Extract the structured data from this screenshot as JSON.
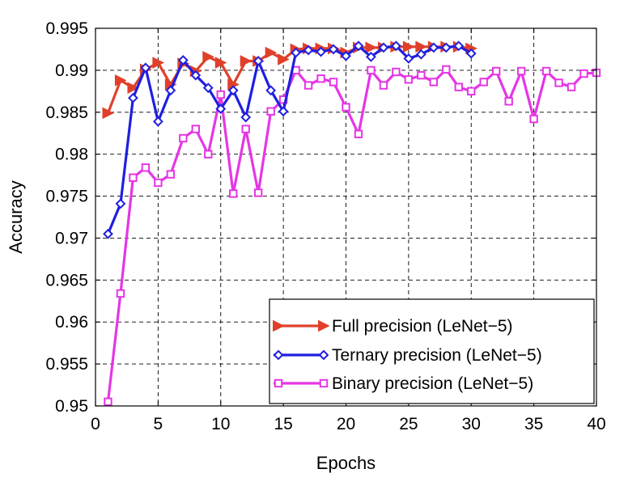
{
  "chart_data": {
    "type": "line",
    "title": "",
    "xlabel": "Epochs",
    "ylabel": "Accuracy",
    "xlim": [
      0,
      40
    ],
    "ylim": [
      0.95,
      0.995
    ],
    "xticks": [
      0,
      5,
      10,
      15,
      20,
      25,
      30,
      35,
      40
    ],
    "yticks": [
      0.95,
      0.955,
      0.96,
      0.965,
      0.97,
      0.975,
      0.98,
      0.985,
      0.99,
      0.995
    ],
    "xtick_labels": [
      "0",
      "5",
      "10",
      "15",
      "20",
      "25",
      "30",
      "35",
      "40"
    ],
    "ytick_labels": [
      "0.95",
      "0.955",
      "0.96",
      "0.965",
      "0.97",
      "0.975",
      "0.98",
      "0.985",
      "0.99",
      "0.995"
    ],
    "grid": true,
    "grid_style": "dashed",
    "legend_position": "bottom-right",
    "series": [
      {
        "name": "Full precision (LeNet−5)",
        "color": "#e0402a",
        "marker": "triangle-right",
        "x": [
          1,
          2,
          3,
          4,
          5,
          6,
          7,
          8,
          9,
          10,
          11,
          12,
          13,
          14,
          15,
          16,
          17,
          18,
          19,
          20,
          21,
          22,
          23,
          24,
          25,
          26,
          27,
          28,
          29,
          30
        ],
        "values": [
          0.9849,
          0.9888,
          0.9879,
          0.9901,
          0.9909,
          0.9883,
          0.9908,
          0.9899,
          0.9916,
          0.9909,
          0.9883,
          0.9911,
          0.9911,
          0.9921,
          0.9913,
          0.9925,
          0.9926,
          0.9926,
          0.9926,
          0.9921,
          0.9927,
          0.9927,
          0.9927,
          0.9928,
          0.9928,
          0.9928,
          0.9928,
          0.9928,
          0.9928,
          0.9926
        ]
      },
      {
        "name": "Ternary precision (LeNet−5)",
        "color": "#1f1fe0",
        "marker": "diamond",
        "x": [
          1,
          2,
          3,
          4,
          5,
          6,
          7,
          8,
          9,
          10,
          11,
          12,
          13,
          14,
          15,
          16,
          17,
          18,
          19,
          20,
          21,
          22,
          23,
          24,
          25,
          26,
          27,
          28,
          29,
          30
        ],
        "values": [
          0.9705,
          0.9741,
          0.9867,
          0.9903,
          0.9839,
          0.9876,
          0.9912,
          0.9894,
          0.9879,
          0.9854,
          0.9876,
          0.9844,
          0.9911,
          0.9876,
          0.9851,
          0.9921,
          0.9924,
          0.9922,
          0.9925,
          0.9917,
          0.9929,
          0.9916,
          0.9927,
          0.9929,
          0.9914,
          0.9919,
          0.9927,
          0.9927,
          0.9929,
          0.992
        ]
      },
      {
        "name": "Binary precision (LeNet−5)",
        "color": "#e536e5",
        "marker": "square",
        "x": [
          1,
          2,
          3,
          4,
          5,
          6,
          7,
          8,
          9,
          10,
          11,
          12,
          13,
          14,
          15,
          16,
          17,
          18,
          19,
          20,
          21,
          22,
          23,
          24,
          25,
          26,
          27,
          28,
          29,
          30,
          31,
          32,
          33,
          34,
          35,
          36,
          37,
          38,
          39,
          40
        ],
        "values": [
          0.9505,
          0.9634,
          0.9772,
          0.9784,
          0.9766,
          0.9776,
          0.9819,
          0.983,
          0.98,
          0.9871,
          0.9753,
          0.983,
          0.9754,
          0.9851,
          0.9865,
          0.99,
          0.9882,
          0.989,
          0.9886,
          0.9856,
          0.9824,
          0.99,
          0.9882,
          0.9898,
          0.9889,
          0.9894,
          0.9886,
          0.9901,
          0.988,
          0.9875,
          0.9886,
          0.9899,
          0.9863,
          0.9899,
          0.9842,
          0.9899,
          0.9885,
          0.988,
          0.9896,
          0.9897
        ]
      }
    ]
  }
}
